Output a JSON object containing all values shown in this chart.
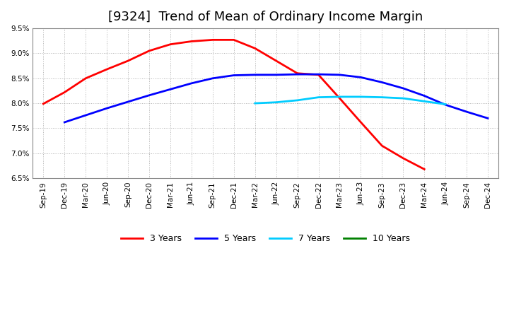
{
  "title": "[9324]  Trend of Mean of Ordinary Income Margin",
  "x_labels": [
    "Sep-19",
    "Dec-19",
    "Mar-20",
    "Jun-20",
    "Sep-20",
    "Dec-20",
    "Mar-21",
    "Jun-21",
    "Sep-21",
    "Dec-21",
    "Mar-22",
    "Jun-22",
    "Sep-22",
    "Dec-22",
    "Mar-23",
    "Jun-23",
    "Sep-23",
    "Dec-23",
    "Mar-24",
    "Jun-24",
    "Sep-24",
    "Dec-24"
  ],
  "series_3y": {
    "color": "#FF0000",
    "label": "3 Years",
    "values": [
      7.99,
      8.22,
      8.5,
      8.68,
      8.85,
      9.05,
      9.18,
      9.24,
      9.27,
      9.27,
      9.1,
      8.85,
      8.6,
      8.57,
      8.1,
      7.62,
      7.15,
      6.9,
      6.68,
      null,
      null,
      null
    ]
  },
  "series_5y": {
    "color": "#0000FF",
    "label": "5 Years",
    "values": [
      null,
      7.62,
      7.76,
      7.9,
      8.03,
      8.16,
      8.28,
      8.4,
      8.5,
      8.56,
      8.57,
      8.57,
      8.58,
      8.58,
      8.57,
      8.52,
      8.42,
      8.3,
      8.15,
      7.97,
      7.83,
      7.7
    ]
  },
  "series_7y": {
    "color": "#00CCFF",
    "label": "7 Years",
    "values": [
      null,
      null,
      null,
      null,
      null,
      null,
      null,
      null,
      null,
      null,
      8.0,
      8.02,
      8.06,
      8.12,
      8.13,
      8.13,
      8.12,
      8.1,
      8.04,
      7.98,
      null,
      null
    ]
  },
  "series_10y": {
    "color": "#008000",
    "label": "10 Years",
    "values": [
      null,
      null,
      null,
      null,
      null,
      null,
      null,
      null,
      null,
      null,
      null,
      null,
      null,
      null,
      null,
      null,
      null,
      null,
      null,
      null,
      null,
      null
    ]
  },
  "ylim": [
    6.5,
    9.5
  ],
  "yticks": [
    6.5,
    7.0,
    7.5,
    8.0,
    8.5,
    9.0,
    9.5
  ],
  "background_color": "#FFFFFF",
  "grid_color": "#AAAAAA",
  "title_fontsize": 13
}
